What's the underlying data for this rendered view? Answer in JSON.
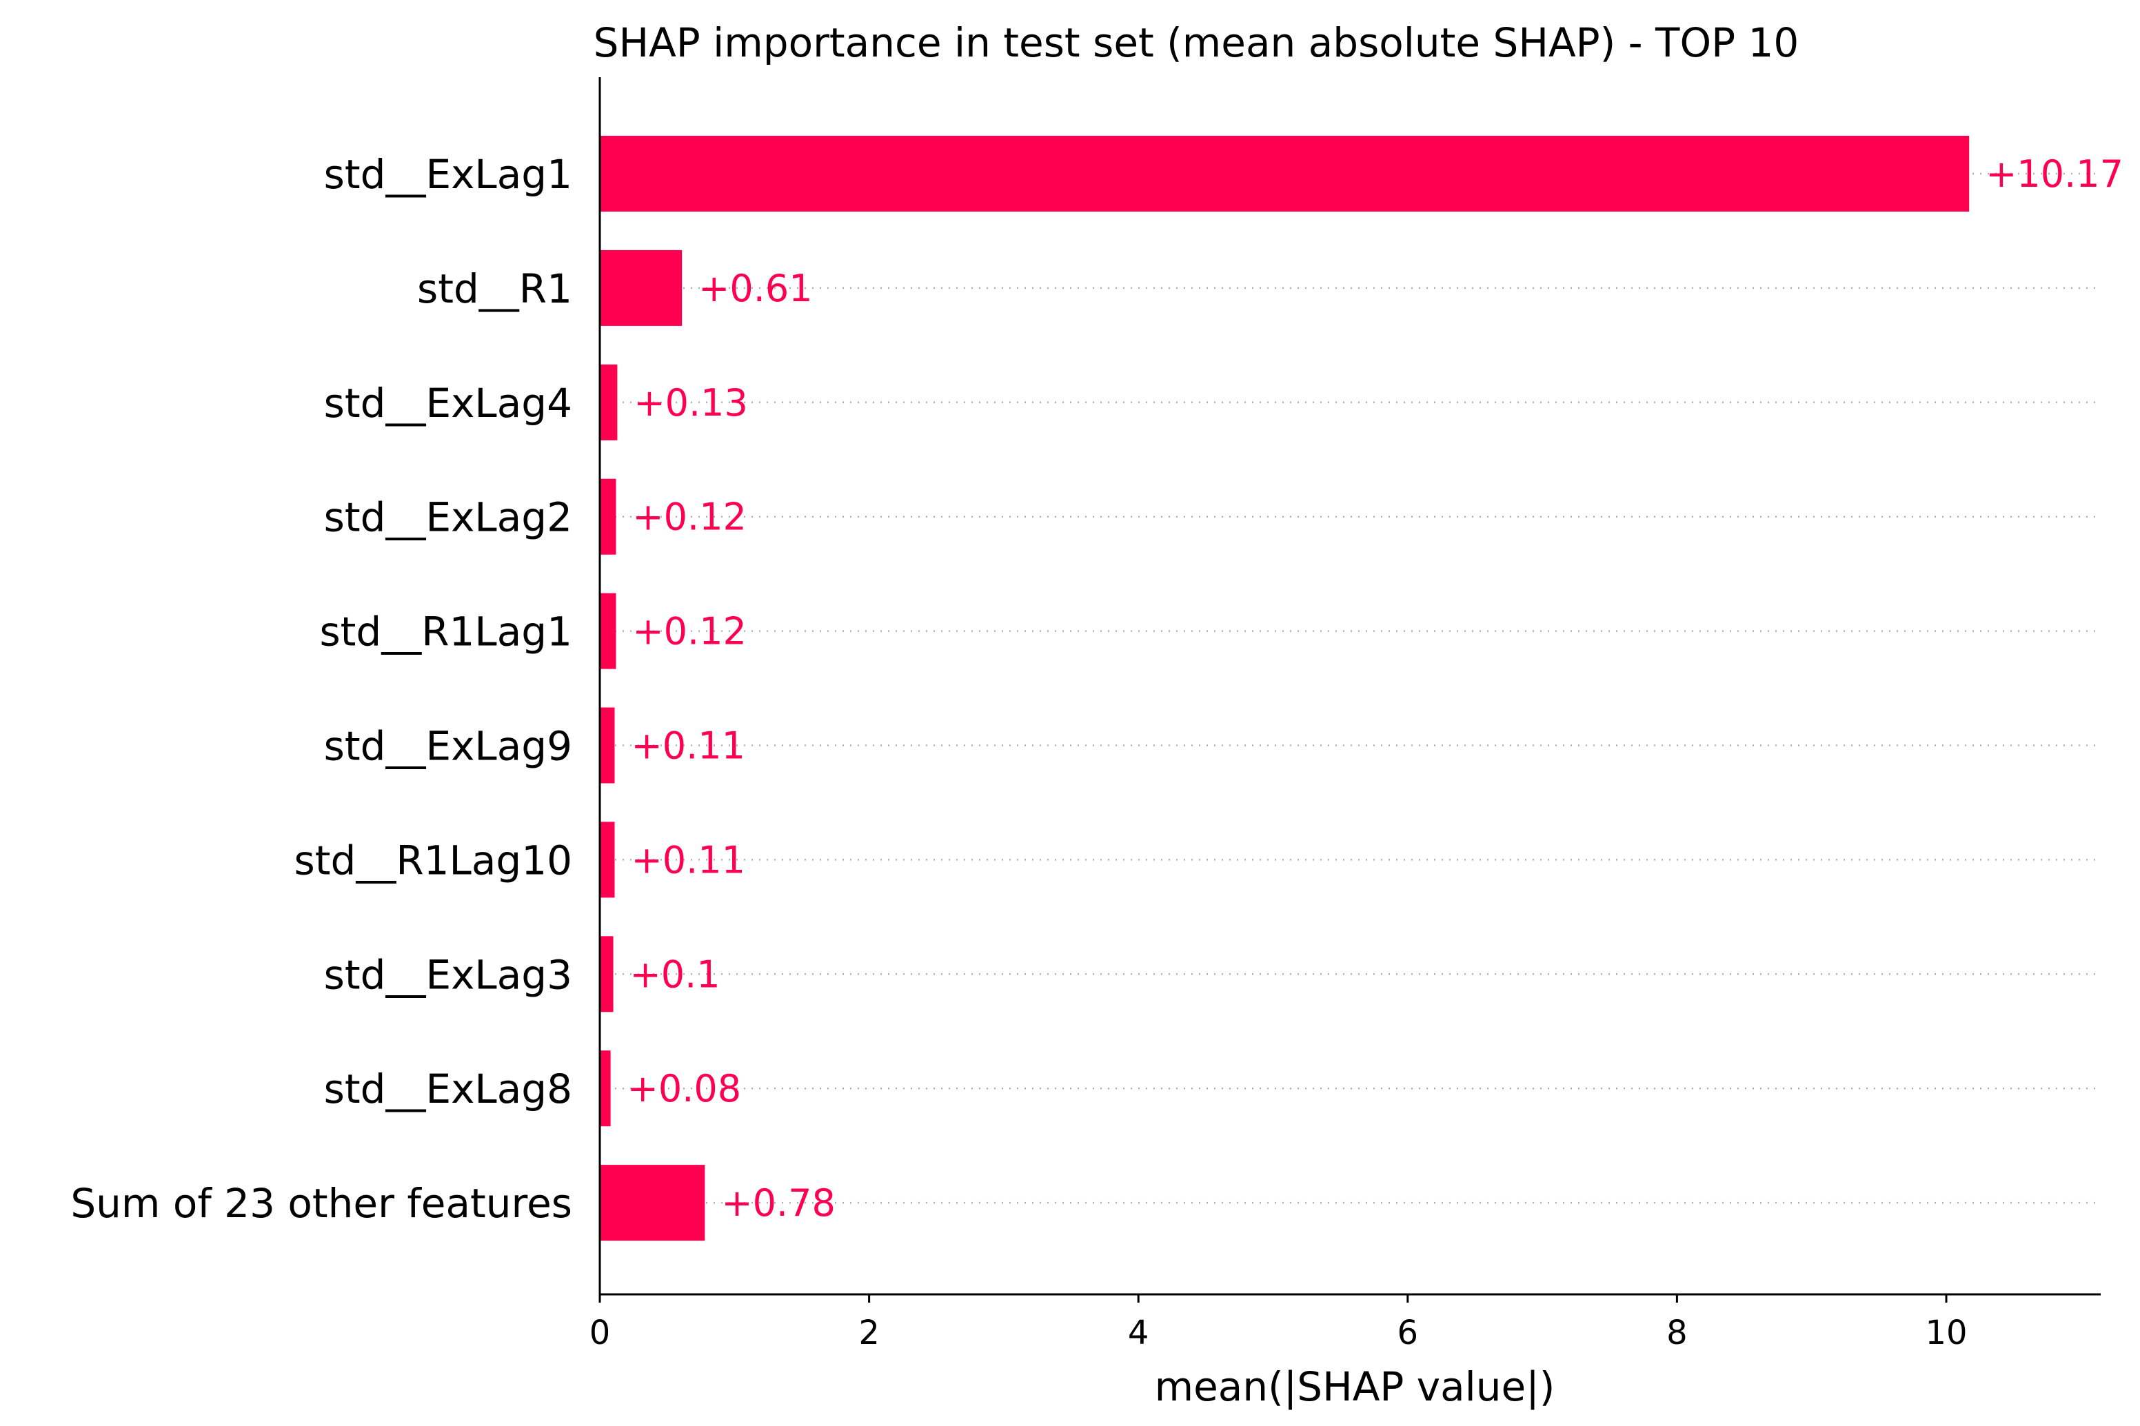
{
  "chart_data": {
    "type": "bar",
    "orientation": "horizontal",
    "title": "SHAP importance in test set (mean absolute SHAP) - TOP 10",
    "xlabel": "mean(|SHAP value|)",
    "ylabel": "",
    "xlim": [
      0,
      11.2
    ],
    "xticks": [
      0,
      2,
      4,
      6,
      8,
      10
    ],
    "grid": "horizontal dotted per bar",
    "bar_color": "#ff0051",
    "categories": [
      "std__ExLag1",
      "std__R1",
      "std__ExLag4",
      "std__ExLag2",
      "std__R1Lag1",
      "std__ExLag9",
      "std__R1Lag10",
      "std__ExLag3",
      "std__ExLag8",
      "Sum of 23 other features"
    ],
    "values": [
      10.17,
      0.61,
      0.13,
      0.12,
      0.12,
      0.11,
      0.11,
      0.1,
      0.08,
      0.78
    ],
    "value_labels": [
      "+10.17",
      "+0.61",
      "+0.13",
      "+0.12",
      "+0.12",
      "+0.11",
      "+0.11",
      "+0.1",
      "+0.08",
      "+0.78"
    ]
  }
}
